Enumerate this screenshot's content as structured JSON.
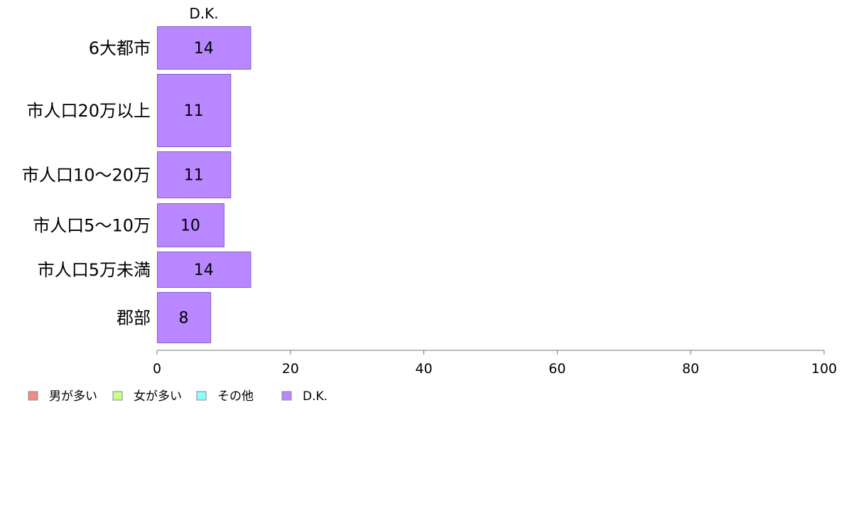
{
  "chart_data": {
    "type": "bar",
    "orientation": "horizontal",
    "stacked": true,
    "categories": [
      "6大都市",
      "市人口20万以上",
      "市人口10〜20万",
      "市人口5〜10万",
      "市人口5万未満",
      "郡部"
    ],
    "series": [
      {
        "name": "D.K.",
        "values": [
          14,
          11,
          11,
          10,
          14,
          8
        ],
        "color": "#b987ff"
      }
    ],
    "top_label": "D.K.",
    "xlim": [
      0,
      100
    ],
    "xticks": [
      0,
      20,
      40,
      60,
      80,
      100
    ],
    "grid": false,
    "legend": {
      "placement": "bottom-left",
      "entries": [
        {
          "name": "男が多い",
          "color": "#f08a8a"
        },
        {
          "name": "女が多い",
          "color": "#c8ff8c"
        },
        {
          "name": "その他",
          "color": "#8cffff"
        },
        {
          "name": "D.K.",
          "color": "#b987ff"
        }
      ]
    }
  }
}
